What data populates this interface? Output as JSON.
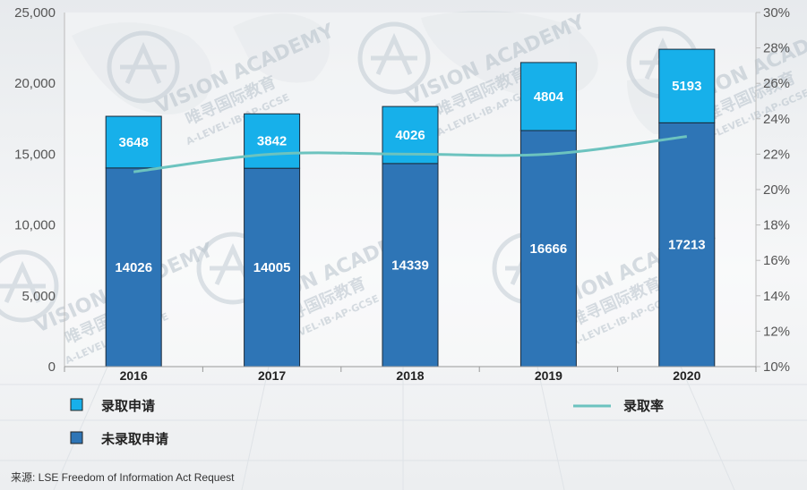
{
  "chart_data": {
    "type": "bar",
    "categories": [
      "2016",
      "2017",
      "2018",
      "2019",
      "2020"
    ],
    "series": [
      {
        "name": "未录取申请",
        "values": [
          14026,
          14005,
          14339,
          16666,
          17213
        ],
        "color": "#2e75b6"
      },
      {
        "name": "录取申请",
        "values": [
          3648,
          3842,
          4026,
          4804,
          5193
        ],
        "color": "#17b0ea"
      },
      {
        "name": "录取率",
        "kind": "line",
        "axis": "right",
        "values": [
          21.0,
          22.0,
          22.0,
          22.0,
          23.0
        ],
        "color": "#6cc3bf"
      }
    ],
    "ylim": [
      0,
      25000
    ],
    "y_ticks": [
      "0",
      "5,000",
      "10,000",
      "15,000",
      "20,000",
      "25,000"
    ],
    "y2lim": [
      10,
      30
    ],
    "y2_ticks": [
      "10%",
      "12%",
      "14%",
      "16%",
      "18%",
      "20%",
      "22%",
      "24%",
      "26%",
      "28%",
      "30%"
    ],
    "stacked": true,
    "grid": false,
    "legend_position": "bottom",
    "source": "来源:   LSE Freedom of Information Act Request"
  },
  "watermark": {
    "line1": "VISION ACADEMY",
    "line2": "唯寻国际教育",
    "line3": "A-LEVEL·IB·AP·GCSE"
  }
}
